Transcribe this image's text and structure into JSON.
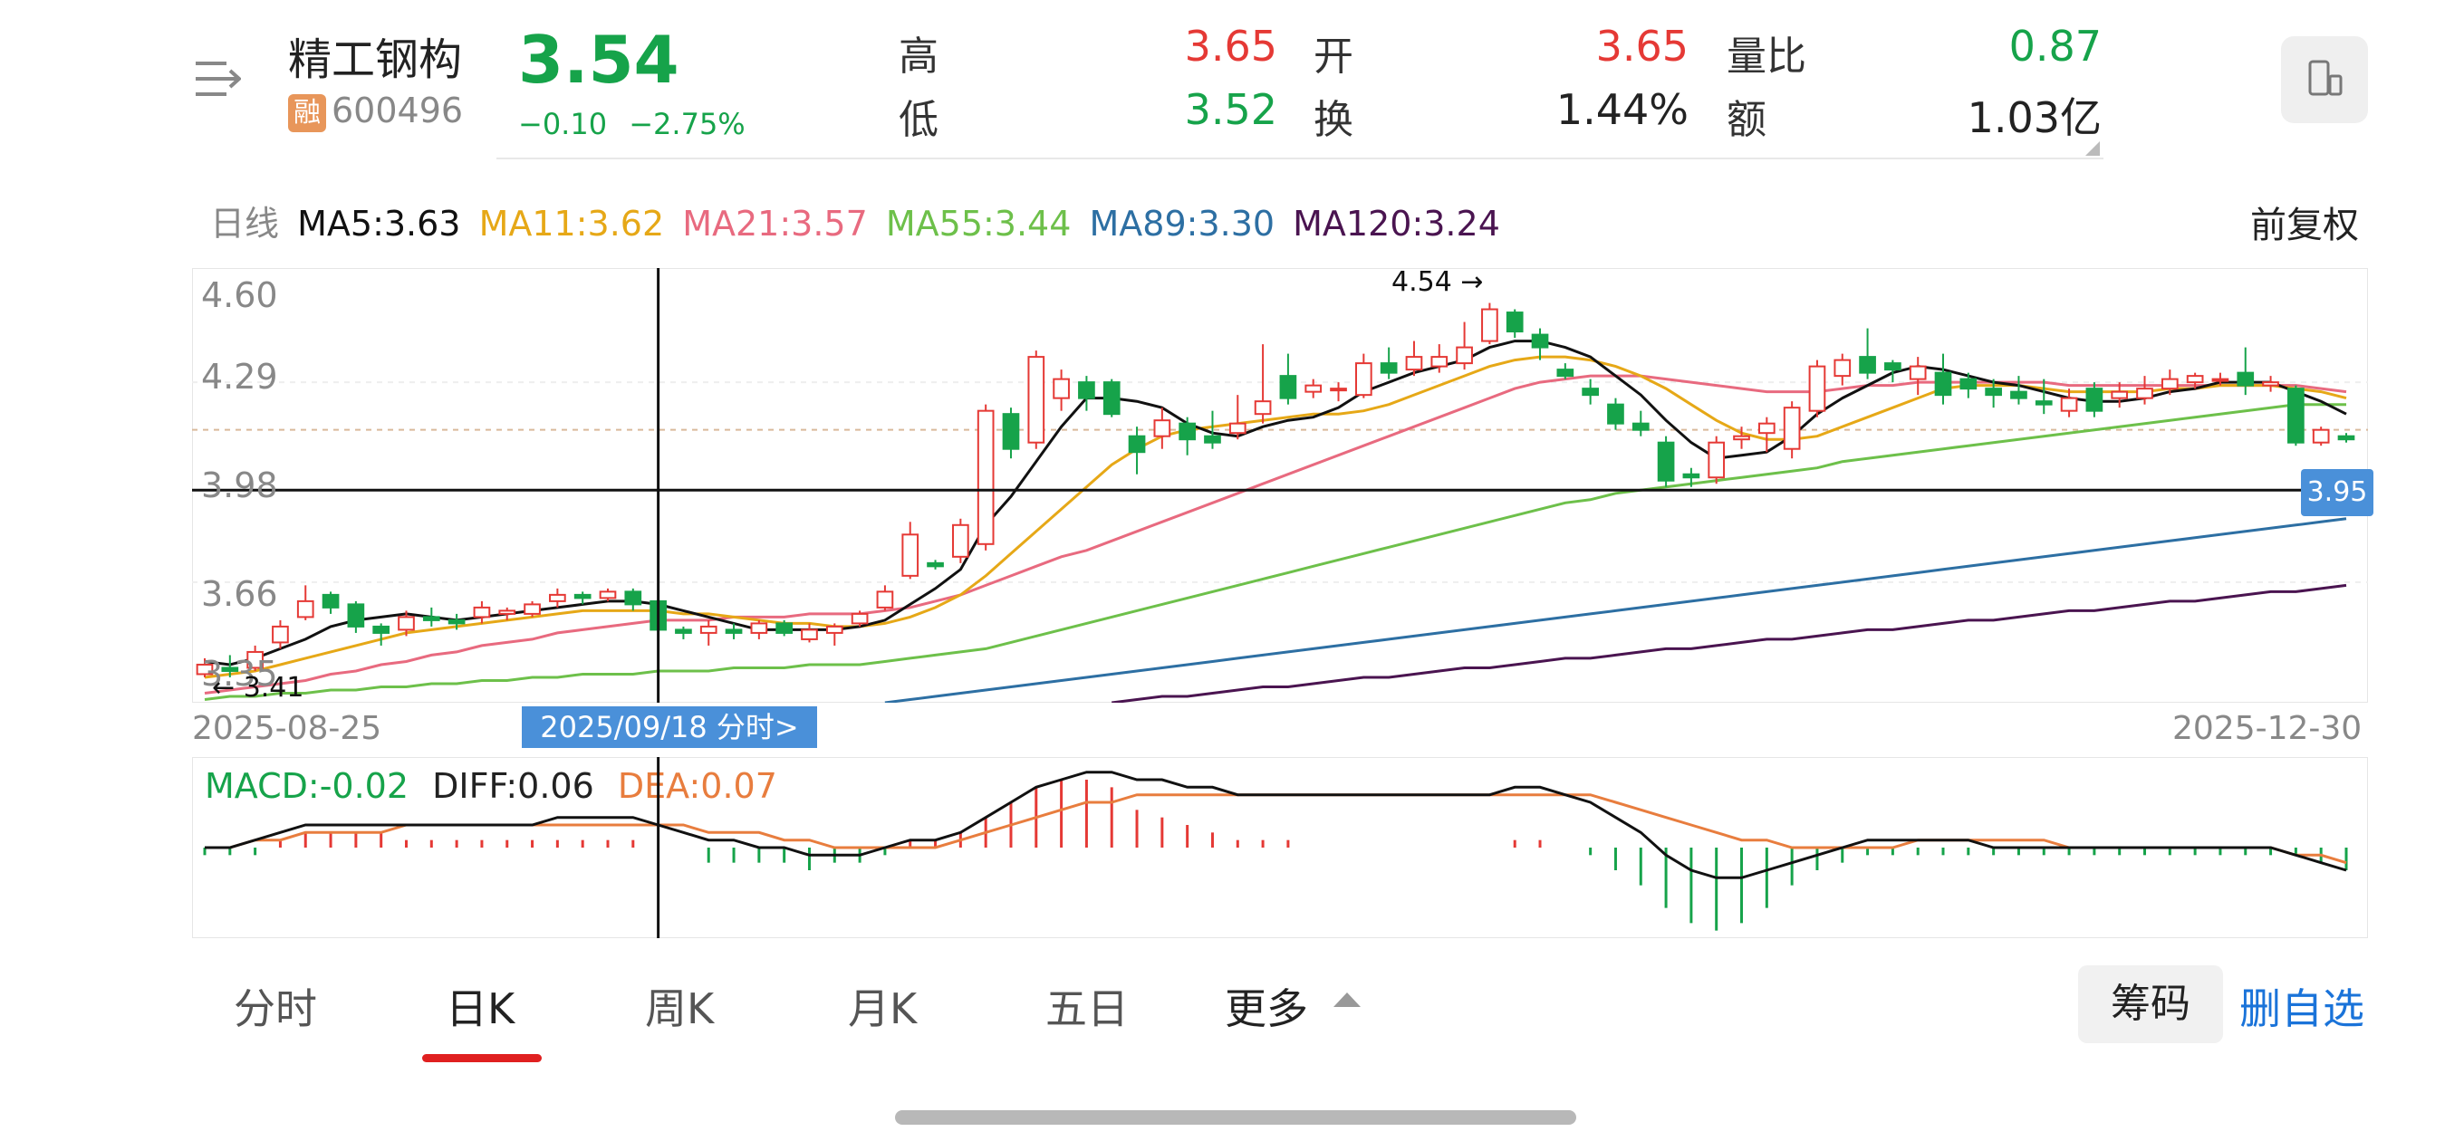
{
  "header": {
    "stock_name": "精工钢构",
    "rong_badge": "融",
    "stock_code": "600496",
    "price": "3.54",
    "change_abs": "−0.10",
    "change_pct": "−2.75%"
  },
  "quote": {
    "high_label": "高",
    "high_value": "3.65",
    "low_label": "低",
    "low_value": "3.52",
    "open_label": "开",
    "open_value": "3.65",
    "turnover_label": "换",
    "turnover_value": "1.44%",
    "volume_ratio_label": "量比",
    "volume_ratio_value": "0.87",
    "amount_label": "额",
    "amount_value": "1.03亿"
  },
  "colors": {
    "up": "#e53935",
    "down": "#16a34a",
    "accent": "#4a90d9",
    "ma5": "#111111",
    "ma11": "#e6a817",
    "ma21": "#e86a7f",
    "ma55": "#6dc04a",
    "ma89": "#2d6fa3",
    "ma120": "#4a1450",
    "dif": "#111111",
    "dea": "#e87d3e"
  },
  "ma_legend": {
    "period": "日线",
    "ma5": "MA5:3.63",
    "ma11": "MA11:3.62",
    "ma21": "MA21:3.57",
    "ma55": "MA55:3.44",
    "ma89": "MA89:3.30",
    "ma120": "MA120:3.24",
    "adjust": "前复权"
  },
  "chart": {
    "y_ticks": [
      "4.60",
      "4.29",
      "3.98",
      "3.66",
      "3.35"
    ],
    "start_date": "2025-08-25",
    "end_date": "2025-12-30",
    "cursor_date": "2025/09/18 分时>",
    "cursor_price": "3.95",
    "high_marker": "4.54",
    "low_marker": "3.41"
  },
  "chart_data": {
    "type": "candlestick",
    "y_range": [
      3.28,
      4.65
    ],
    "candles": [
      [
        3.37,
        3.4,
        3.36,
        3.42
      ],
      [
        3.39,
        3.38,
        3.36,
        3.43
      ],
      [
        3.39,
        3.44,
        3.38,
        3.46
      ],
      [
        3.47,
        3.52,
        3.45,
        3.54
      ],
      [
        3.55,
        3.6,
        3.54,
        3.65
      ],
      [
        3.62,
        3.58,
        3.56,
        3.63
      ],
      [
        3.59,
        3.52,
        3.5,
        3.6
      ],
      [
        3.52,
        3.5,
        3.46,
        3.53
      ],
      [
        3.51,
        3.55,
        3.49,
        3.57
      ],
      [
        3.55,
        3.54,
        3.52,
        3.58
      ],
      [
        3.54,
        3.53,
        3.51,
        3.56
      ],
      [
        3.55,
        3.58,
        3.53,
        3.6
      ],
      [
        3.56,
        3.57,
        3.54,
        3.58
      ],
      [
        3.56,
        3.59,
        3.55,
        3.6
      ],
      [
        3.6,
        3.62,
        3.58,
        3.64
      ],
      [
        3.62,
        3.61,
        3.59,
        3.63
      ],
      [
        3.61,
        3.63,
        3.6,
        3.64
      ],
      [
        3.63,
        3.59,
        3.57,
        3.64
      ],
      [
        3.6,
        3.51,
        3.5,
        3.61
      ],
      [
        3.51,
        3.5,
        3.48,
        3.52
      ],
      [
        3.5,
        3.52,
        3.46,
        3.54
      ],
      [
        3.51,
        3.5,
        3.48,
        3.53
      ],
      [
        3.5,
        3.53,
        3.48,
        3.54
      ],
      [
        3.53,
        3.5,
        3.49,
        3.54
      ],
      [
        3.48,
        3.51,
        3.47,
        3.53
      ],
      [
        3.5,
        3.52,
        3.46,
        3.53
      ],
      [
        3.53,
        3.56,
        3.52,
        3.57
      ],
      [
        3.58,
        3.63,
        3.57,
        3.65
      ],
      [
        3.68,
        3.81,
        3.67,
        3.85
      ],
      [
        3.72,
        3.71,
        3.7,
        3.73
      ],
      [
        3.74,
        3.84,
        3.72,
        3.86
      ],
      [
        3.78,
        4.2,
        3.76,
        4.22
      ],
      [
        4.19,
        4.08,
        4.05,
        4.21
      ],
      [
        4.1,
        4.37,
        4.08,
        4.39
      ],
      [
        4.24,
        4.3,
        4.2,
        4.33
      ],
      [
        4.29,
        4.24,
        4.2,
        4.31
      ],
      [
        4.29,
        4.19,
        4.18,
        4.3
      ],
      [
        4.12,
        4.07,
        4.0,
        4.15
      ],
      [
        4.12,
        4.17,
        4.08,
        4.21
      ],
      [
        4.16,
        4.11,
        4.06,
        4.18
      ],
      [
        4.12,
        4.1,
        4.08,
        4.2
      ],
      [
        4.13,
        4.16,
        4.11,
        4.25
      ],
      [
        4.19,
        4.23,
        4.16,
        4.41
      ],
      [
        4.31,
        4.24,
        4.22,
        4.38
      ],
      [
        4.26,
        4.28,
        4.24,
        4.3
      ],
      [
        4.27,
        4.27,
        4.23,
        4.29
      ],
      [
        4.25,
        4.35,
        4.24,
        4.38
      ],
      [
        4.35,
        4.32,
        4.3,
        4.4
      ],
      [
        4.33,
        4.37,
        4.31,
        4.42
      ],
      [
        4.34,
        4.37,
        4.32,
        4.41
      ],
      [
        4.35,
        4.4,
        4.33,
        4.48
      ],
      [
        4.42,
        4.52,
        4.41,
        4.54
      ],
      [
        4.51,
        4.45,
        4.43,
        4.52
      ],
      [
        4.44,
        4.4,
        4.36,
        4.46
      ],
      [
        4.33,
        4.31,
        4.3,
        4.35
      ],
      [
        4.27,
        4.25,
        4.22,
        4.3
      ],
      [
        4.22,
        4.16,
        4.14,
        4.24
      ],
      [
        4.16,
        4.14,
        4.12,
        4.2
      ],
      [
        4.1,
        3.98,
        3.96,
        4.12
      ],
      [
        4.0,
        3.99,
        3.96,
        4.02
      ],
      [
        3.99,
        4.1,
        3.97,
        4.12
      ],
      [
        4.11,
        4.12,
        4.08,
        4.15
      ],
      [
        4.13,
        4.16,
        4.07,
        4.18
      ],
      [
        4.08,
        4.21,
        4.05,
        4.23
      ],
      [
        4.2,
        4.34,
        4.18,
        4.36
      ],
      [
        4.31,
        4.36,
        4.28,
        4.38
      ],
      [
        4.37,
        4.32,
        4.3,
        4.46
      ],
      [
        4.35,
        4.33,
        4.29,
        4.36
      ],
      [
        4.3,
        4.34,
        4.25,
        4.37
      ],
      [
        4.32,
        4.25,
        4.22,
        4.38
      ],
      [
        4.3,
        4.27,
        4.24,
        4.32
      ],
      [
        4.27,
        4.25,
        4.21,
        4.3
      ],
      [
        4.26,
        4.24,
        4.22,
        4.31
      ],
      [
        4.23,
        4.22,
        4.19,
        4.3
      ],
      [
        4.2,
        4.24,
        4.18,
        4.27
      ],
      [
        4.27,
        4.2,
        4.18,
        4.29
      ],
      [
        4.24,
        4.26,
        4.21,
        4.29
      ],
      [
        4.24,
        4.27,
        4.22,
        4.31
      ],
      [
        4.27,
        4.3,
        4.25,
        4.33
      ],
      [
        4.29,
        4.31,
        4.27,
        4.32
      ],
      [
        4.3,
        4.3,
        4.28,
        4.32
      ],
      [
        4.32,
        4.28,
        4.25,
        4.4
      ],
      [
        4.28,
        4.29,
        4.26,
        4.31
      ],
      [
        4.27,
        4.1,
        4.09,
        4.28
      ],
      [
        4.1,
        4.14,
        4.09,
        4.15
      ],
      [
        4.12,
        4.11,
        4.1,
        4.13
      ]
    ],
    "ma5": [
      3.41,
      3.4,
      3.42,
      3.45,
      3.48,
      3.52,
      3.54,
      3.55,
      3.56,
      3.55,
      3.54,
      3.55,
      3.56,
      3.57,
      3.58,
      3.59,
      3.6,
      3.6,
      3.59,
      3.57,
      3.55,
      3.53,
      3.51,
      3.51,
      3.51,
      3.51,
      3.52,
      3.54,
      3.59,
      3.64,
      3.7,
      3.84,
      3.93,
      4.04,
      4.15,
      4.24,
      4.24,
      4.23,
      4.21,
      4.16,
      4.13,
      4.12,
      4.15,
      4.17,
      4.18,
      4.21,
      4.26,
      4.29,
      4.32,
      4.34,
      4.36,
      4.4,
      4.42,
      4.42,
      4.4,
      4.37,
      4.31,
      4.25,
      4.17,
      4.1,
      4.05,
      4.06,
      4.07,
      4.12,
      4.19,
      4.24,
      4.28,
      4.32,
      4.34,
      4.33,
      4.31,
      4.29,
      4.28,
      4.26,
      4.24,
      4.23,
      4.23,
      4.24,
      4.26,
      4.27,
      4.29,
      4.29,
      4.29,
      4.26,
      4.23,
      4.19
    ],
    "ma11": [
      3.36,
      3.37,
      3.38,
      3.4,
      3.42,
      3.44,
      3.46,
      3.48,
      3.5,
      3.51,
      3.52,
      3.53,
      3.54,
      3.55,
      3.56,
      3.57,
      3.57,
      3.57,
      3.57,
      3.56,
      3.56,
      3.55,
      3.54,
      3.53,
      3.53,
      3.52,
      3.52,
      3.53,
      3.55,
      3.58,
      3.62,
      3.68,
      3.75,
      3.82,
      3.89,
      3.96,
      4.03,
      4.08,
      4.12,
      4.14,
      4.15,
      4.16,
      4.17,
      4.18,
      4.19,
      4.19,
      4.2,
      4.22,
      4.25,
      4.28,
      4.31,
      4.34,
      4.36,
      4.37,
      4.37,
      4.36,
      4.34,
      4.31,
      4.27,
      4.22,
      4.17,
      4.13,
      4.11,
      4.11,
      4.12,
      4.15,
      4.18,
      4.21,
      4.24,
      4.27,
      4.28,
      4.28,
      4.28,
      4.27,
      4.26,
      4.26,
      4.26,
      4.26,
      4.27,
      4.27,
      4.28,
      4.28,
      4.28,
      4.27,
      4.26,
      4.24
    ],
    "ma21": [
      3.31,
      3.32,
      3.33,
      3.34,
      3.35,
      3.37,
      3.38,
      3.4,
      3.41,
      3.43,
      3.44,
      3.46,
      3.47,
      3.48,
      3.5,
      3.51,
      3.52,
      3.53,
      3.54,
      3.54,
      3.54,
      3.55,
      3.55,
      3.55,
      3.56,
      3.56,
      3.56,
      3.57,
      3.58,
      3.6,
      3.62,
      3.65,
      3.68,
      3.71,
      3.74,
      3.76,
      3.79,
      3.82,
      3.85,
      3.88,
      3.91,
      3.94,
      3.97,
      4.0,
      4.03,
      4.06,
      4.09,
      4.12,
      4.15,
      4.18,
      4.21,
      4.24,
      4.27,
      4.29,
      4.3,
      4.31,
      4.31,
      4.31,
      4.3,
      4.29,
      4.28,
      4.27,
      4.26,
      4.26,
      4.26,
      4.27,
      4.28,
      4.28,
      4.29,
      4.29,
      4.29,
      4.29,
      4.29,
      4.29,
      4.28,
      4.28,
      4.28,
      4.28,
      4.28,
      4.28,
      4.28,
      4.28,
      4.28,
      4.28,
      4.27,
      4.26
    ],
    "ma55": [
      3.29,
      3.3,
      3.3,
      3.31,
      3.31,
      3.32,
      3.32,
      3.33,
      3.33,
      3.34,
      3.34,
      3.35,
      3.35,
      3.36,
      3.36,
      3.37,
      3.37,
      3.37,
      3.38,
      3.38,
      3.38,
      3.39,
      3.39,
      3.39,
      3.4,
      3.4,
      3.4,
      3.41,
      3.42,
      3.43,
      3.44,
      3.45,
      3.47,
      3.49,
      3.51,
      3.53,
      3.55,
      3.57,
      3.59,
      3.61,
      3.63,
      3.65,
      3.67,
      3.69,
      3.71,
      3.73,
      3.75,
      3.77,
      3.79,
      3.81,
      3.83,
      3.85,
      3.87,
      3.89,
      3.91,
      3.92,
      3.94,
      3.95,
      3.96,
      3.97,
      3.98,
      3.99,
      4.0,
      4.01,
      4.02,
      4.04,
      4.05,
      4.06,
      4.07,
      4.08,
      4.09,
      4.1,
      4.11,
      4.12,
      4.13,
      4.14,
      4.15,
      4.16,
      4.17,
      4.18,
      4.19,
      4.2,
      4.21,
      4.22,
      4.22,
      4.22
    ],
    "ma89": [
      null,
      null,
      null,
      null,
      null,
      null,
      null,
      null,
      null,
      null,
      null,
      null,
      null,
      null,
      null,
      null,
      null,
      null,
      null,
      null,
      null,
      null,
      null,
      null,
      null,
      null,
      null,
      3.28,
      3.29,
      3.3,
      3.31,
      3.32,
      3.33,
      3.34,
      3.35,
      3.36,
      3.37,
      3.38,
      3.39,
      3.4,
      3.41,
      3.42,
      3.43,
      3.44,
      3.45,
      3.46,
      3.47,
      3.48,
      3.49,
      3.5,
      3.51,
      3.52,
      3.53,
      3.54,
      3.55,
      3.56,
      3.57,
      3.58,
      3.59,
      3.6,
      3.61,
      3.62,
      3.63,
      3.64,
      3.65,
      3.66,
      3.67,
      3.68,
      3.69,
      3.7,
      3.71,
      3.72,
      3.73,
      3.74,
      3.75,
      3.76,
      3.77,
      3.78,
      3.79,
      3.8,
      3.81,
      3.82,
      3.83,
      3.84,
      3.85,
      3.86
    ],
    "ma120": [
      null,
      null,
      null,
      null,
      null,
      null,
      null,
      null,
      null,
      null,
      null,
      null,
      null,
      null,
      null,
      null,
      null,
      null,
      null,
      null,
      null,
      null,
      null,
      null,
      null,
      null,
      null,
      null,
      null,
      null,
      null,
      null,
      null,
      null,
      null,
      null,
      3.28,
      3.29,
      3.3,
      3.3,
      3.31,
      3.32,
      3.33,
      3.33,
      3.34,
      3.35,
      3.36,
      3.36,
      3.37,
      3.38,
      3.39,
      3.39,
      3.4,
      3.41,
      3.42,
      3.42,
      3.43,
      3.44,
      3.45,
      3.45,
      3.46,
      3.47,
      3.48,
      3.48,
      3.49,
      3.5,
      3.51,
      3.51,
      3.52,
      3.53,
      3.54,
      3.54,
      3.55,
      3.56,
      3.57,
      3.57,
      3.58,
      3.59,
      3.6,
      3.6,
      3.61,
      3.62,
      3.63,
      3.63,
      3.64,
      3.65
    ],
    "macd_range": [
      -0.12,
      0.12
    ],
    "dif": [
      0.0,
      0.0,
      0.01,
      0.02,
      0.03,
      0.03,
      0.03,
      0.03,
      0.03,
      0.03,
      0.03,
      0.03,
      0.03,
      0.03,
      0.04,
      0.04,
      0.04,
      0.04,
      0.03,
      0.02,
      0.01,
      0.01,
      0.0,
      0.0,
      -0.01,
      -0.01,
      -0.01,
      0.0,
      0.01,
      0.01,
      0.02,
      0.04,
      0.06,
      0.08,
      0.09,
      0.1,
      0.1,
      0.09,
      0.09,
      0.08,
      0.08,
      0.07,
      0.07,
      0.07,
      0.07,
      0.07,
      0.07,
      0.07,
      0.07,
      0.07,
      0.07,
      0.07,
      0.08,
      0.08,
      0.07,
      0.06,
      0.04,
      0.02,
      -0.01,
      -0.03,
      -0.04,
      -0.04,
      -0.03,
      -0.02,
      -0.01,
      0.0,
      0.01,
      0.01,
      0.01,
      0.01,
      0.01,
      0.0,
      0.0,
      0.0,
      0.0,
      0.0,
      0.0,
      0.0,
      0.0,
      0.0,
      0.0,
      0.0,
      0.0,
      -0.01,
      -0.02,
      -0.03
    ],
    "dea": [
      0.0,
      0.0,
      0.01,
      0.01,
      0.02,
      0.02,
      0.02,
      0.02,
      0.03,
      0.03,
      0.03,
      0.03,
      0.03,
      0.03,
      0.03,
      0.03,
      0.03,
      0.03,
      0.03,
      0.03,
      0.02,
      0.02,
      0.02,
      0.01,
      0.01,
      0.0,
      0.0,
      0.0,
      0.0,
      0.0,
      0.01,
      0.02,
      0.03,
      0.04,
      0.05,
      0.06,
      0.06,
      0.07,
      0.07,
      0.07,
      0.07,
      0.07,
      0.07,
      0.07,
      0.07,
      0.07,
      0.07,
      0.07,
      0.07,
      0.07,
      0.07,
      0.07,
      0.07,
      0.07,
      0.07,
      0.07,
      0.06,
      0.05,
      0.04,
      0.03,
      0.02,
      0.01,
      0.01,
      0.0,
      0.0,
      0.0,
      0.0,
      0.0,
      0.01,
      0.01,
      0.01,
      0.01,
      0.01,
      0.01,
      0.0,
      0.0,
      0.0,
      0.0,
      0.0,
      0.0,
      0.0,
      0.0,
      0.0,
      -0.01,
      -0.01,
      -0.02
    ],
    "macd_hist": [
      -0.01,
      -0.01,
      -0.01,
      0.01,
      0.02,
      0.02,
      0.02,
      0.02,
      0.01,
      0.01,
      0.01,
      0.01,
      0.01,
      0.01,
      0.01,
      0.01,
      0.01,
      0.01,
      0.0,
      0.0,
      -0.02,
      -0.02,
      -0.02,
      -0.02,
      -0.03,
      -0.02,
      -0.02,
      -0.01,
      0.01,
      0.01,
      0.02,
      0.04,
      0.06,
      0.08,
      0.09,
      0.09,
      0.08,
      0.05,
      0.04,
      0.03,
      0.02,
      0.01,
      0.01,
      0.01,
      0.0,
      0.0,
      0.0,
      0.0,
      0.0,
      0.0,
      0.0,
      0.0,
      0.01,
      0.01,
      0.0,
      -0.01,
      -0.03,
      -0.05,
      -0.08,
      -0.1,
      -0.11,
      -0.1,
      -0.08,
      -0.05,
      -0.03,
      -0.02,
      -0.01,
      -0.01,
      -0.01,
      -0.01,
      -0.01,
      -0.01,
      -0.01,
      -0.01,
      -0.01,
      -0.01,
      -0.01,
      -0.01,
      -0.01,
      -0.01,
      -0.01,
      -0.01,
      -0.01,
      -0.01,
      -0.02,
      -0.03
    ],
    "cursor_index": 18
  },
  "macd_legend": {
    "macd": "MACD:-0.02",
    "diff": "DIFF:0.06",
    "dea": "DEA:0.07"
  },
  "tabs": [
    "分时",
    "日K",
    "周K",
    "月K",
    "五日",
    "更多"
  ],
  "actions": {
    "chips": "筹码",
    "delete_watchlist": "删自选"
  }
}
